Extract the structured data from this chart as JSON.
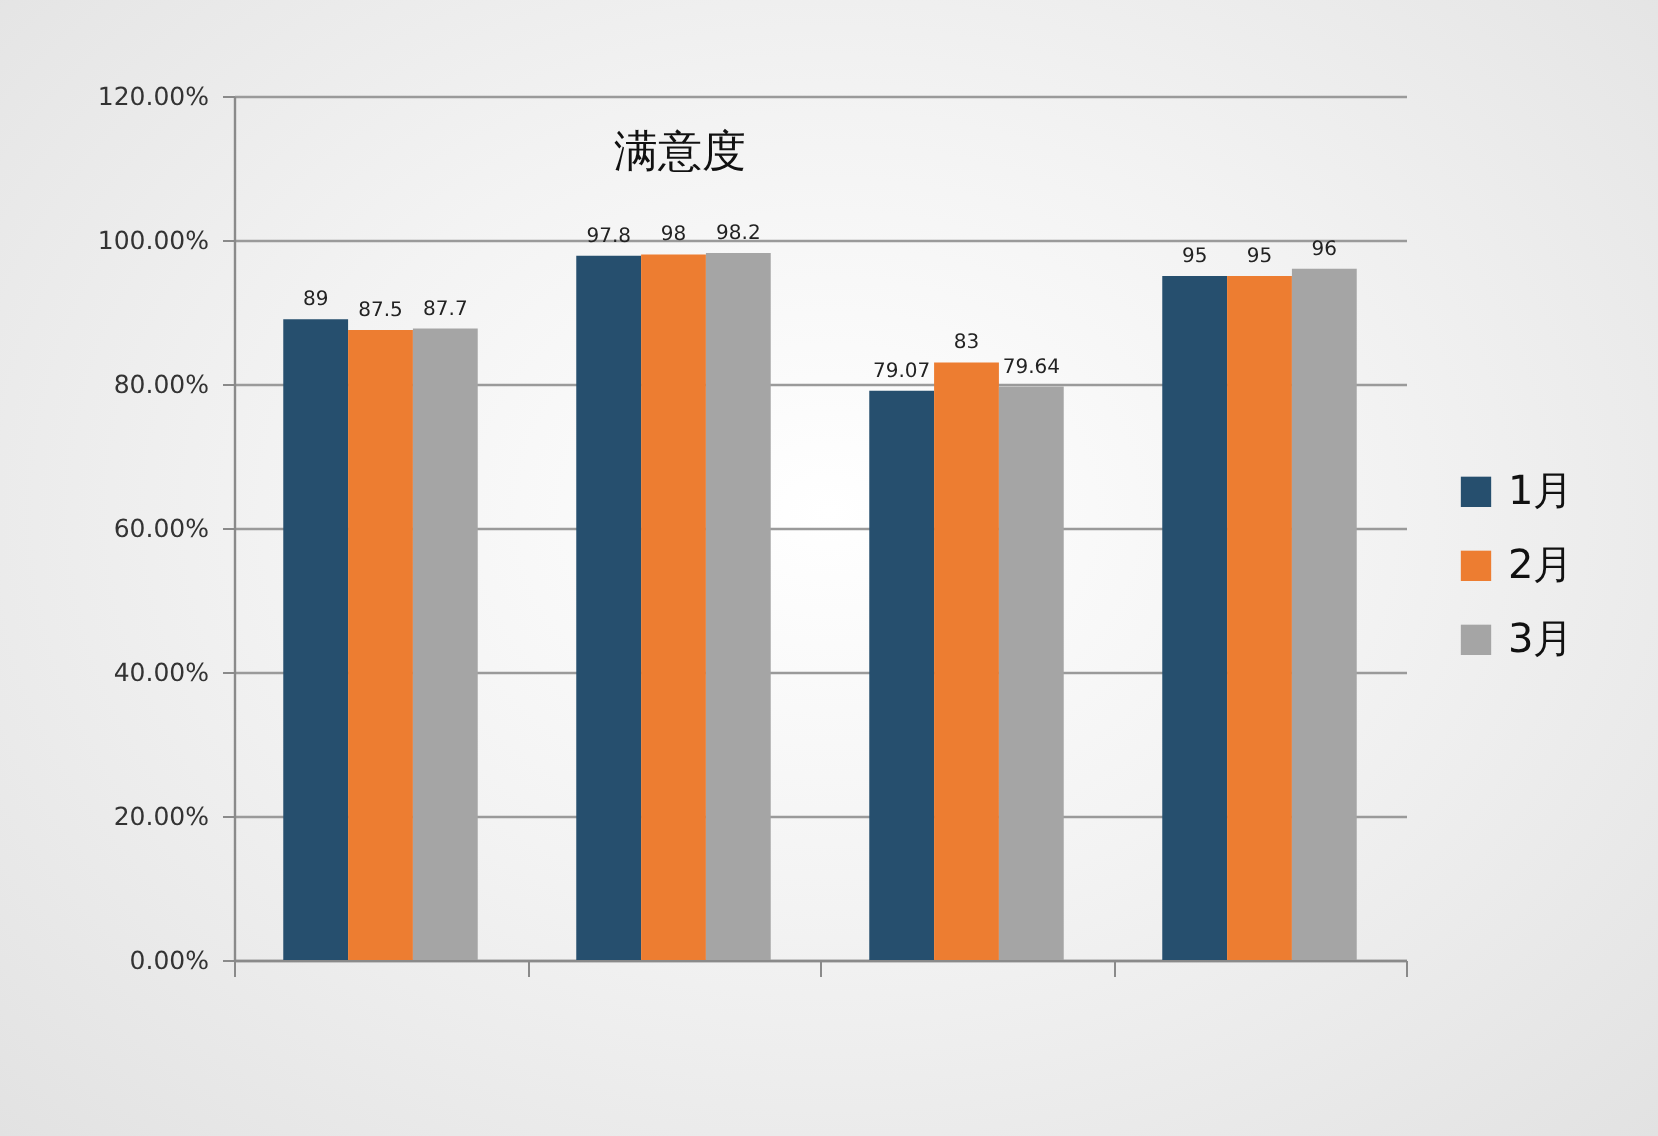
{
  "chart_data": {
    "type": "bar",
    "title": "满意度",
    "categories": [
      null,
      null,
      null,
      null
    ],
    "series": [
      {
        "name": "1月",
        "color": "#264f6e",
        "values": [
          89,
          97.8,
          79.07,
          95
        ]
      },
      {
        "name": "2月",
        "color": "#ed7d31",
        "values": [
          87.5,
          98,
          83,
          95
        ]
      },
      {
        "name": "3月",
        "color": "#a5a5a5",
        "values": [
          87.7,
          98.2,
          79.64,
          96
        ]
      }
    ],
    "ylim": [
      0,
      120
    ],
    "yticks": [
      {
        "value": 0,
        "label": "0.00%"
      },
      {
        "value": 20,
        "label": "20.00%"
      },
      {
        "value": 40,
        "label": "40.00%"
      },
      {
        "value": 60,
        "label": "60.00%"
      },
      {
        "value": 80,
        "label": "80.00%"
      },
      {
        "value": 100,
        "label": "100.00%"
      },
      {
        "value": 120,
        "label": "120.00%"
      }
    ],
    "grid": "y",
    "legend": "right",
    "data_labels": true,
    "tick_labels": "y"
  }
}
